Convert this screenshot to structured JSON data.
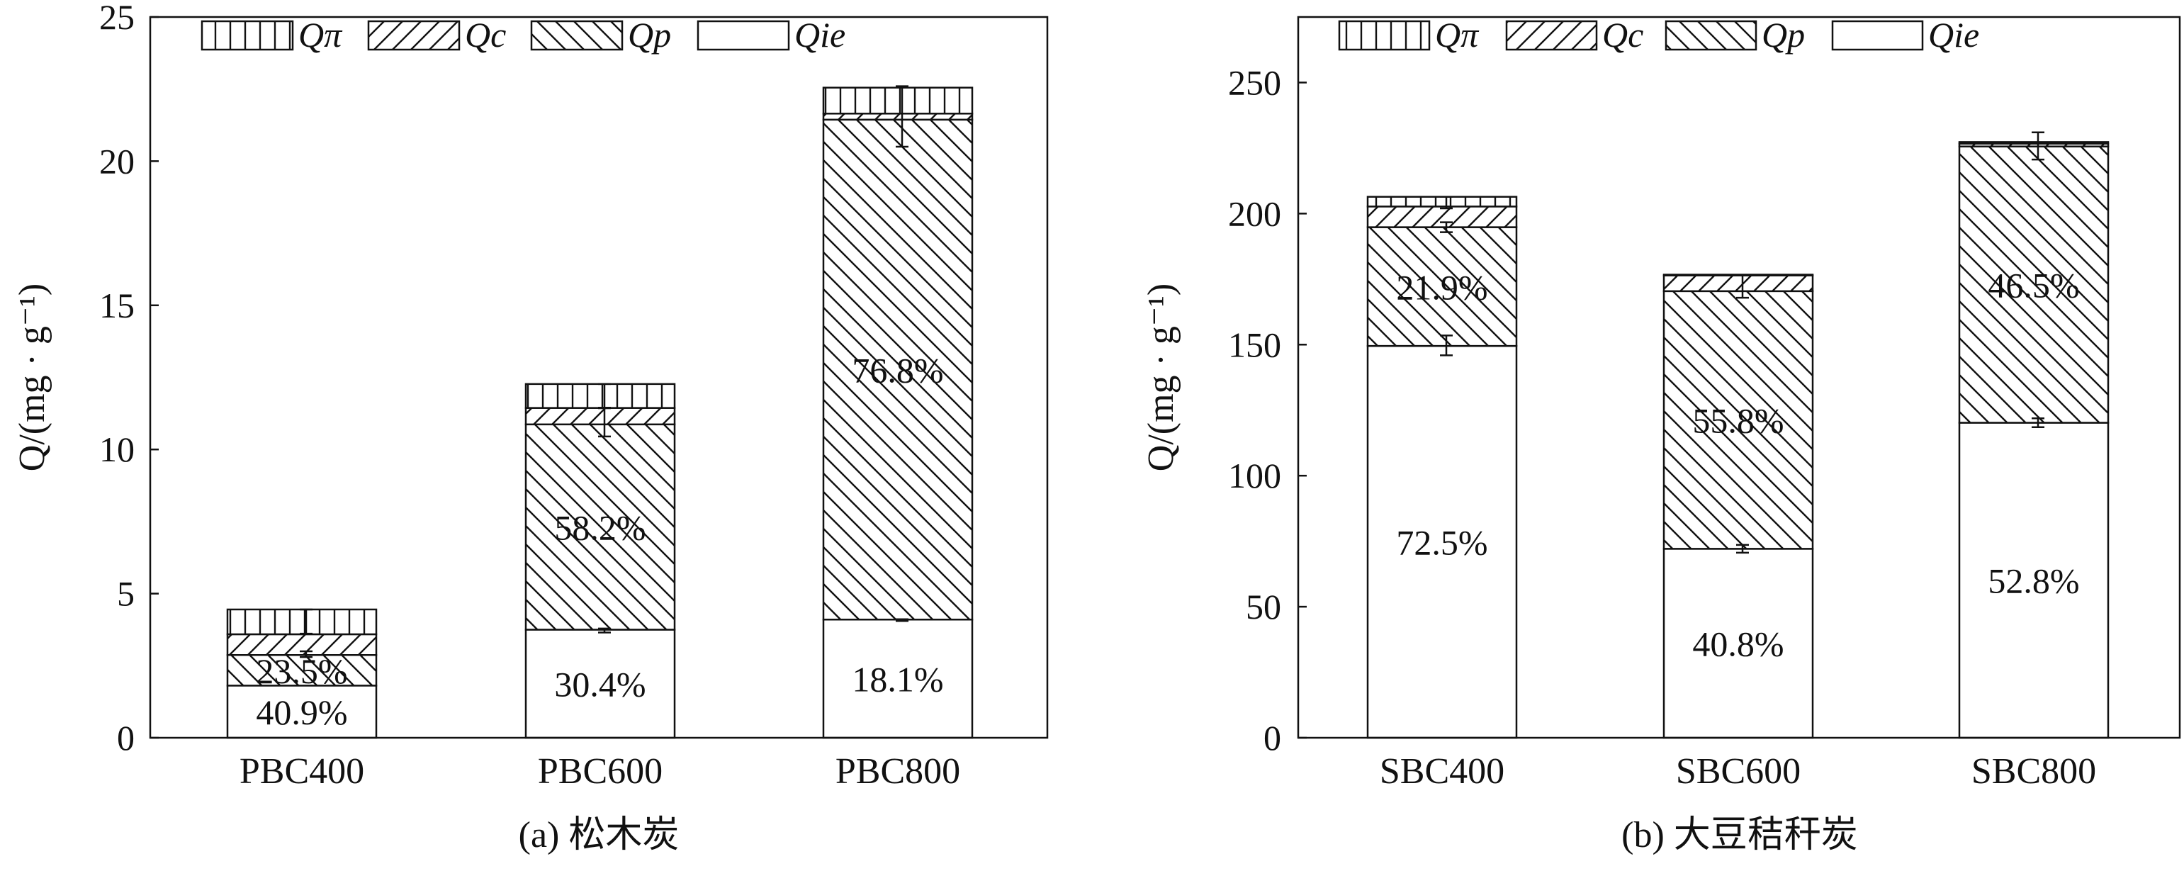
{
  "chart_data": [
    {
      "type": "bar",
      "stacked": true,
      "subtitle": "(a) 松木炭",
      "ylabel": "Q/(mg · g⁻¹)",
      "ylabel_parts": {
        "q": "Q",
        "unit": "/(mg · g",
        "exp": "−1",
        "close": ")"
      },
      "ylim": [
        0,
        25
      ],
      "yticks": [
        0,
        5,
        10,
        15,
        20,
        25
      ],
      "categories": [
        "PBC400",
        "PBC600",
        "PBC800"
      ],
      "legend_placement": "top",
      "series": [
        {
          "name": "Qie",
          "label_main": "Q",
          "label_sub": "ie",
          "pattern": "none",
          "values": [
            1.81,
            3.75,
            4.1
          ]
        },
        {
          "name": "Qp",
          "label_main": "Q",
          "label_sub": "p",
          "pattern": "backslash",
          "values": [
            1.06,
            7.12,
            17.34
          ]
        },
        {
          "name": "Qc",
          "label_main": "Q",
          "label_sub": "c",
          "pattern": "slash",
          "values": [
            0.72,
            0.57,
            0.21
          ]
        },
        {
          "name": "Qπ",
          "label_main": "Q",
          "label_sub": "π",
          "pattern": "vertical",
          "values": [
            0.86,
            0.83,
            0.9
          ]
        }
      ],
      "legend_order": [
        "Qπ",
        "Qc",
        "Qp",
        "Qie"
      ],
      "annotations": [
        {
          "category": "PBC400",
          "series": "Qie",
          "text": "40.9%"
        },
        {
          "category": "PBC400",
          "series": "Qp",
          "text": "23.5%"
        },
        {
          "category": "PBC600",
          "series": "Qie",
          "text": "30.4%"
        },
        {
          "category": "PBC600",
          "series": "Qp",
          "text": "58.2%"
        },
        {
          "category": "PBC800",
          "series": "Qie",
          "text": "18.1%"
        },
        {
          "category": "PBC800",
          "series": "Qp",
          "text": "76.8%"
        }
      ],
      "error_bars": [
        [
          [
            2.9,
            0.1
          ],
          [
            4.03,
            0.42
          ]
        ],
        [
          [
            3.72,
            0.07
          ],
          [
            10.95,
            0.5
          ],
          [
            11.85,
            0.42
          ]
        ],
        [
          [
            4.08,
            0.03
          ],
          [
            21.55,
            1.05
          ]
        ]
      ]
    },
    {
      "type": "bar",
      "stacked": true,
      "subtitle": "(b) 大豆秸秆炭",
      "ylabel": "Q/(mg · g⁻¹)",
      "ylabel_parts": {
        "q": "Q",
        "unit": "/(mg · g",
        "exp": "−1",
        "close": ")"
      },
      "ylim": [
        0,
        275
      ],
      "yticks": [
        0,
        50,
        100,
        150,
        200,
        250
      ],
      "categories": [
        "SBC400",
        "SBC600",
        "SBC800"
      ],
      "legend_placement": "top",
      "series": [
        {
          "name": "Qie",
          "label_main": "Q",
          "label_sub": "ie",
          "pattern": "none",
          "values": [
            149.5,
            72.1,
            120.2
          ]
        },
        {
          "name": "Qp",
          "label_main": "Q",
          "label_sub": "p",
          "pattern": "backslash",
          "values": [
            45.3,
            98.3,
            105.4
          ]
        },
        {
          "name": "Qc",
          "label_main": "Q",
          "label_sub": "c",
          "pattern": "slash",
          "values": [
            7.9,
            6.0,
            1.1
          ]
        },
        {
          "name": "Qπ",
          "label_main": "Q",
          "label_sub": "π",
          "pattern": "vertical",
          "values": [
            3.7,
            0.3,
            0.6
          ]
        }
      ],
      "legend_order": [
        "Qπ",
        "Qc",
        "Qp",
        "Qie"
      ],
      "annotations": [
        {
          "category": "SBC400",
          "series": "Qie",
          "text": "72.5%"
        },
        {
          "category": "SBC400",
          "series": "Qp",
          "text": "21.9%"
        },
        {
          "category": "SBC600",
          "series": "Qie",
          "text": "40.8%"
        },
        {
          "category": "SBC600",
          "series": "Qp",
          "text": "55.8%"
        },
        {
          "category": "SBC800",
          "series": "Qie",
          "text": "52.8%"
        },
        {
          "category": "SBC800",
          "series": "Qp",
          "text": "46.5%"
        }
      ],
      "error_bars": [
        [
          [
            149.7,
            3.8
          ],
          [
            194.8,
            1.9
          ],
          [
            204.2,
            2.2
          ]
        ],
        [
          [
            72.1,
            1.5
          ],
          [
            172.2,
            4.3
          ]
        ],
        [
          [
            120.2,
            1.7
          ],
          [
            225.8,
            5.2
          ]
        ]
      ]
    }
  ]
}
